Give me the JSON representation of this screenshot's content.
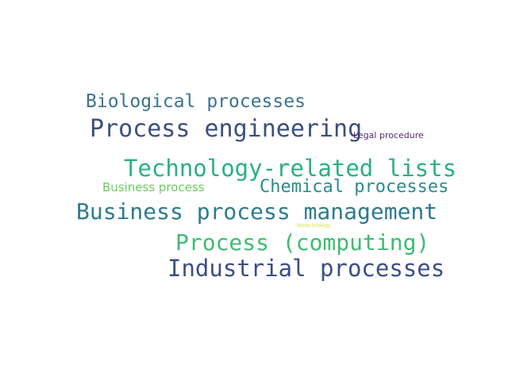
{
  "word_cloud": {
    "words": [
      {
        "text": "Biological processes",
        "color": "#3b758b"
      },
      {
        "text": "Process engineering",
        "color": "#3b4f7f"
      },
      {
        "text": "Legal procedure",
        "color": "#582a68"
      },
      {
        "text": "Technology-related lists",
        "color": "#2bb07f"
      },
      {
        "text": "Business process",
        "color": "#6fc95f"
      },
      {
        "text": "Chemical processes",
        "color": "#2a8c8c"
      },
      {
        "text": "Business process management",
        "color": "#2e7b8d"
      },
      {
        "text": "Biotechnology",
        "color": "#d4dc3a"
      },
      {
        "text": "Process (computing)",
        "color": "#3fbc73"
      },
      {
        "text": "Industrial processes",
        "color": "#3a4f82"
      }
    ]
  }
}
